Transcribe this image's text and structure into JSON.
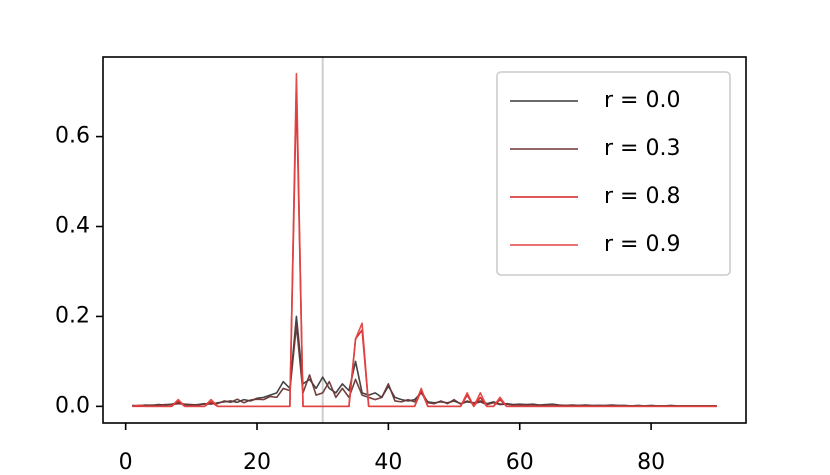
{
  "chart_data": {
    "type": "line",
    "x": [
      1,
      2,
      3,
      4,
      5,
      6,
      7,
      8,
      9,
      10,
      11,
      12,
      13,
      14,
      15,
      16,
      17,
      18,
      19,
      20,
      21,
      22,
      23,
      24,
      25,
      26,
      27,
      28,
      29,
      30,
      31,
      32,
      33,
      34,
      35,
      36,
      37,
      38,
      39,
      40,
      41,
      42,
      43,
      44,
      45,
      46,
      47,
      48,
      49,
      50,
      51,
      52,
      53,
      54,
      55,
      56,
      57,
      58,
      59,
      60,
      61,
      62,
      63,
      64,
      65,
      66,
      67,
      68,
      69,
      70,
      71,
      72,
      73,
      74,
      75,
      76,
      77,
      78,
      79,
      80,
      81,
      82,
      83,
      84,
      85,
      86,
      87,
      88,
      89,
      90
    ],
    "series": [
      {
        "name": "r = 0.0",
        "color": "#3a3a3a",
        "values": [
          0.002,
          0.001,
          0.003,
          0.002,
          0.004,
          0.003,
          0.005,
          0.008,
          0.004,
          0.003,
          0.004,
          0.006,
          0.005,
          0.008,
          0.01,
          0.012,
          0.009,
          0.015,
          0.012,
          0.018,
          0.02,
          0.025,
          0.03,
          0.055,
          0.04,
          0.2,
          0.05,
          0.06,
          0.04,
          0.065,
          0.04,
          0.03,
          0.05,
          0.035,
          0.1,
          0.03,
          0.025,
          0.03,
          0.02,
          0.045,
          0.02,
          0.015,
          0.012,
          0.015,
          0.03,
          0.01,
          0.008,
          0.01,
          0.008,
          0.012,
          0.006,
          0.01,
          0.008,
          0.012,
          0.006,
          0.01,
          0.005,
          0.006,
          0.004,
          0.005,
          0.004,
          0.005,
          0.003,
          0.004,
          0.005,
          0.003,
          0.002,
          0.003,
          0.002,
          0.003,
          0.002,
          0.002,
          0.002,
          0.003,
          0.002,
          0.002,
          0.001,
          0.002,
          0.001,
          0.002,
          0.001,
          0.001,
          0.002,
          0.001,
          0.001,
          0.001,
          0.001,
          0.001,
          0.001,
          0.001
        ]
      },
      {
        "name": "r = 0.3",
        "color": "#6e3535",
        "values": [
          0.001,
          0.002,
          0.002,
          0.003,
          0.002,
          0.004,
          0.004,
          0.006,
          0.005,
          0.004,
          0.003,
          0.005,
          0.007,
          0.006,
          0.012,
          0.009,
          0.016,
          0.008,
          0.014,
          0.016,
          0.015,
          0.022,
          0.02,
          0.04,
          0.035,
          0.18,
          0.03,
          0.07,
          0.025,
          0.03,
          0.055,
          0.02,
          0.04,
          0.02,
          0.06,
          0.025,
          0.02,
          0.015,
          0.02,
          0.05,
          0.012,
          0.01,
          0.015,
          0.01,
          0.035,
          0.008,
          0.006,
          0.012,
          0.006,
          0.015,
          0.005,
          0.012,
          0.006,
          0.01,
          0.004,
          0.008,
          0.004,
          0.005,
          0.003,
          0.004,
          0.003,
          0.004,
          0.002,
          0.003,
          0.004,
          0.002,
          0.002,
          0.002,
          0.002,
          0.002,
          0.001,
          0.002,
          0.001,
          0.002,
          0.001,
          0.001,
          0.001,
          0.001,
          0.001,
          0.001,
          0.001,
          0.001,
          0.001,
          0.001,
          0.001,
          0.001,
          0.001,
          0.001,
          0.001,
          0.001
        ]
      },
      {
        "name": "r = 0.8",
        "color": "#d42020",
        "values": [
          0,
          0,
          0,
          0,
          0,
          0,
          0,
          0.012,
          0,
          0,
          0,
          0,
          0.01,
          0,
          0,
          0,
          0,
          0,
          0,
          0,
          0,
          0,
          0,
          0,
          0,
          0.7,
          0,
          0,
          0,
          0,
          0,
          0,
          0,
          0,
          0.15,
          0.17,
          0,
          0,
          0,
          0,
          0,
          0,
          0,
          0,
          0.035,
          0,
          0,
          0,
          0,
          0,
          0,
          0.025,
          0,
          0.02,
          0,
          0,
          0.015,
          0,
          0,
          0,
          0,
          0,
          0,
          0,
          0,
          0,
          0,
          0,
          0,
          0,
          0,
          0,
          0,
          0,
          0,
          0,
          0,
          0,
          0,
          0,
          0,
          0,
          0,
          0,
          0,
          0,
          0,
          0,
          0,
          0
        ]
      },
      {
        "name": "r = 0.9",
        "color": "#e04545",
        "values": [
          0,
          0.002,
          0,
          0,
          0,
          0,
          0,
          0.015,
          0,
          0,
          0,
          0,
          0.015,
          0,
          0,
          0,
          0,
          0,
          0,
          0,
          0,
          0,
          0,
          0,
          0,
          0.74,
          0,
          0,
          0,
          0,
          0,
          0,
          0,
          0,
          0.15,
          0.185,
          0,
          0,
          0,
          0,
          0,
          0,
          0,
          0,
          0.04,
          0,
          0,
          0,
          0,
          0,
          0,
          0.03,
          0,
          0.03,
          0,
          0,
          0.02,
          0,
          0,
          0,
          0,
          0,
          0,
          0,
          0,
          0,
          0,
          0,
          0,
          0,
          0,
          0,
          0,
          0,
          0,
          0,
          0,
          0,
          0,
          0,
          0,
          0,
          0,
          0,
          0,
          0,
          0,
          0,
          0,
          0
        ]
      }
    ],
    "xlim": [
      -3.45,
      94.45
    ],
    "ylim": [
      -0.037,
      0.777
    ],
    "xticks": [
      0,
      20,
      40,
      60,
      80
    ],
    "yticks": [
      {
        "value": 0,
        "label": "0.0"
      },
      {
        "value": 0.2,
        "label": "0.2"
      },
      {
        "value": 0.4,
        "label": "0.4"
      },
      {
        "value": 0.6,
        "label": "0.6"
      }
    ],
    "reference_line": 30,
    "reference_color": "#cccccc",
    "legend": "upper right"
  }
}
